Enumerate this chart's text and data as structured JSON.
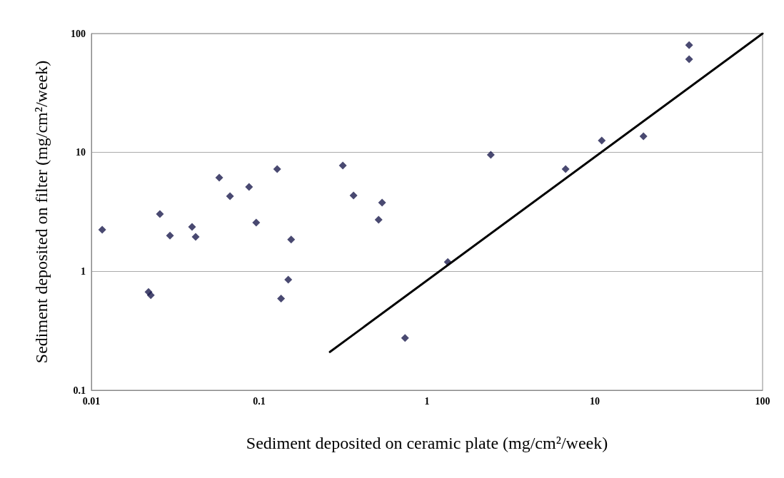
{
  "chart_data": {
    "type": "scatter",
    "xlabel": "Sediment deposited on ceramic plate (mg/cm²/week)",
    "ylabel": "Sediment deposited on filter (mg/cm²/week)",
    "log": "xy",
    "xlim": [
      0.01,
      100
    ],
    "xticks": [
      0.01,
      0.1,
      1,
      10,
      100
    ],
    "ylim": [
      0.1,
      100
    ],
    "yticks": [
      0.1,
      1,
      10,
      100
    ],
    "grid": "y",
    "marker": "diamond",
    "series": [
      {
        "color": "#1c1c4e",
        "x": [
          0.0116,
          0.0219,
          0.0226,
          0.0256,
          0.0294,
          0.0398,
          0.0418,
          0.0578,
          0.067,
          0.087,
          0.096,
          0.128,
          0.135,
          0.149,
          0.155,
          0.315,
          0.365,
          0.54,
          0.515,
          0.74,
          1.33,
          2.4,
          6.7,
          11,
          19.5,
          36.5,
          36.5
        ],
        "values": [
          2.24,
          0.67,
          0.63,
          3.03,
          2.0,
          2.37,
          1.95,
          6.14,
          4.28,
          5.13,
          2.57,
          7.25,
          0.59,
          0.85,
          1.85,
          7.76,
          4.35,
          3.79,
          2.72,
          0.275,
          1.2,
          9.55,
          7.25,
          12.6,
          13.7,
          60.8,
          80
        ]
      },
      {
        "type": "line",
        "color": "#000000",
        "marker": "none",
        "x": [
          0.264,
          100
        ],
        "values": [
          0.21,
          100
        ]
      }
    ]
  }
}
